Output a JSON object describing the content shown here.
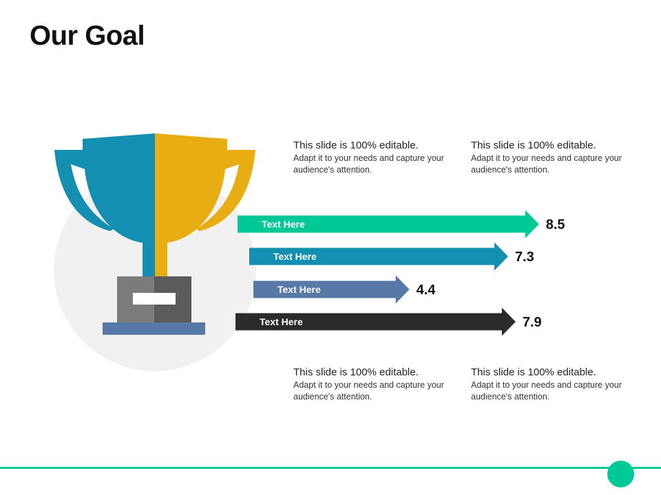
{
  "slide": {
    "title": "Our Goal"
  },
  "text_blocks": [
    {
      "heading": "This slide is 100% editable.",
      "body": "Adapt it to your needs and capture your audience's attention."
    },
    {
      "heading": "This slide is 100% editable.",
      "body": "Adapt it to your needs and capture your audience's attention."
    },
    {
      "heading": "This slide is 100% editable.",
      "body": "Adapt it to your needs and capture your audience's attention."
    },
    {
      "heading": "This slide is 100% editable.",
      "body": "Adapt it to your needs and capture your audience's attention."
    }
  ],
  "icons": {
    "trophy": "trophy-icon"
  },
  "colors": {
    "teal_green": "#00c896",
    "blue": "#138fb2",
    "steel_blue": "#5779a8",
    "dark": "#2b2b2b",
    "trophy_left": "#138fb2",
    "trophy_right": "#e8ad12",
    "circle_bg": "#f1f1f1",
    "base_light": "#7b7b7b",
    "base_dark": "#5b5b5b",
    "base_plate": "#5779a8",
    "footer": "#00c896"
  },
  "chart_data": {
    "type": "bar",
    "orientation": "horizontal",
    "categories": [
      "Text Here",
      "Text Here",
      "Text Here",
      "Text Here"
    ],
    "values": [
      8.5,
      7.3,
      4.4,
      7.9
    ],
    "value_labels": [
      "8.5",
      "7.3",
      "4.4",
      "7.9"
    ],
    "colors": [
      "#00c896",
      "#138fb2",
      "#5779a8",
      "#2b2b2b"
    ],
    "title": "",
    "xlabel": "",
    "ylabel": "",
    "grid": false,
    "legend": "none"
  }
}
